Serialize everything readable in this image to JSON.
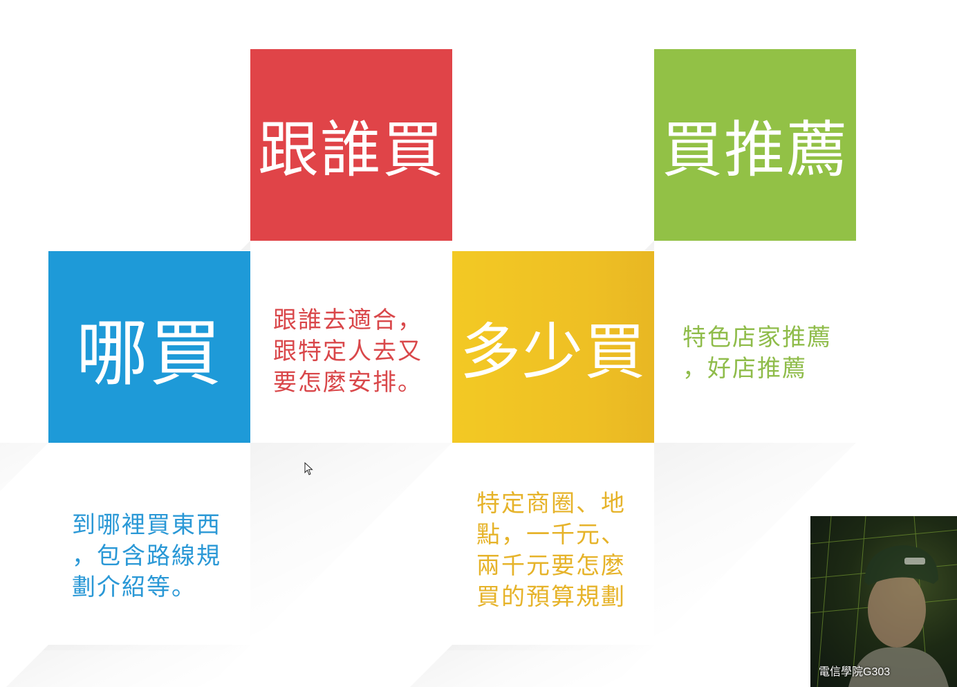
{
  "tiles": {
    "red": {
      "title": "跟誰買",
      "description_lines": [
        "跟誰去適合，",
        "跟特定人去又",
        "要怎麼安排。"
      ]
    },
    "green": {
      "title": "買推薦",
      "description_lines": [
        "特色店家推薦",
        "，好店推薦"
      ]
    },
    "blue": {
      "title": "哪買",
      "description_lines": [
        "到哪裡買東西",
        "，包含路線規",
        "劃介紹等。"
      ]
    },
    "yellow": {
      "title": "多少買",
      "description_lines": [
        "特定商圈、地",
        "點，一千元、",
        "兩千元要怎麼",
        "買的預算規劃"
      ]
    }
  },
  "colors": {
    "red": "#e04448",
    "green": "#92c146",
    "blue": "#1e9ad8",
    "yellow": "#f0c425"
  },
  "webcam": {
    "label": "電信學院G303"
  },
  "icons": {
    "cursor": "mouse-pointer-icon"
  }
}
